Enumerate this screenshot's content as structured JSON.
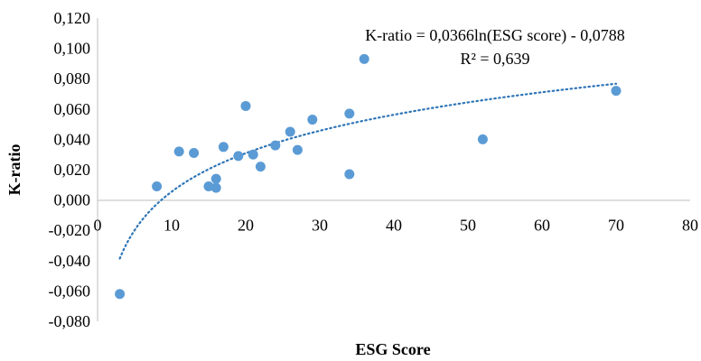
{
  "chart_data": {
    "type": "scatter",
    "title": "",
    "xlabel": "ESG Score",
    "ylabel": "K-ratio",
    "xlim": [
      0,
      80
    ],
    "ylim": [
      -0.08,
      0.12
    ],
    "x_ticks": [
      "0",
      "10",
      "20",
      "30",
      "40",
      "50",
      "60",
      "70",
      "80"
    ],
    "y_ticks": [
      "0,120",
      "0,100",
      "0,080",
      "0,060",
      "0,040",
      "0,020",
      "0,000",
      "-0,020",
      "-0,040",
      "-0,060",
      "-0,080"
    ],
    "grid": false,
    "legend": "none",
    "series": [
      {
        "points": [
          {
            "x": 3,
            "y": -0.062
          },
          {
            "x": 8,
            "y": 0.009
          },
          {
            "x": 11,
            "y": 0.032
          },
          {
            "x": 13,
            "y": 0.031
          },
          {
            "x": 15,
            "y": 0.009
          },
          {
            "x": 16,
            "y": 0.014
          },
          {
            "x": 16,
            "y": 0.008
          },
          {
            "x": 17,
            "y": 0.035
          },
          {
            "x": 19,
            "y": 0.029
          },
          {
            "x": 20,
            "y": 0.062
          },
          {
            "x": 21,
            "y": 0.03
          },
          {
            "x": 22,
            "y": 0.022
          },
          {
            "x": 24,
            "y": 0.036
          },
          {
            "x": 26,
            "y": 0.045
          },
          {
            "x": 27,
            "y": 0.033
          },
          {
            "x": 29,
            "y": 0.053
          },
          {
            "x": 34,
            "y": 0.057
          },
          {
            "x": 34,
            "y": 0.017
          },
          {
            "x": 36,
            "y": 0.093
          },
          {
            "x": 52,
            "y": 0.04
          },
          {
            "x": 70,
            "y": 0.072
          }
        ]
      }
    ],
    "trendline": {
      "type": "logarithmic",
      "slope": 0.0366,
      "intercept": -0.0788,
      "x_range": [
        3,
        70
      ],
      "style": "dotted"
    },
    "annotations": {
      "equation": "K-ratio = 0,0366ln(ESG score) - 0,0788",
      "r_squared": "R² = 0,639"
    },
    "colors": {
      "marker": "#5b9bd5",
      "trendline": "#2e75b6"
    }
  }
}
